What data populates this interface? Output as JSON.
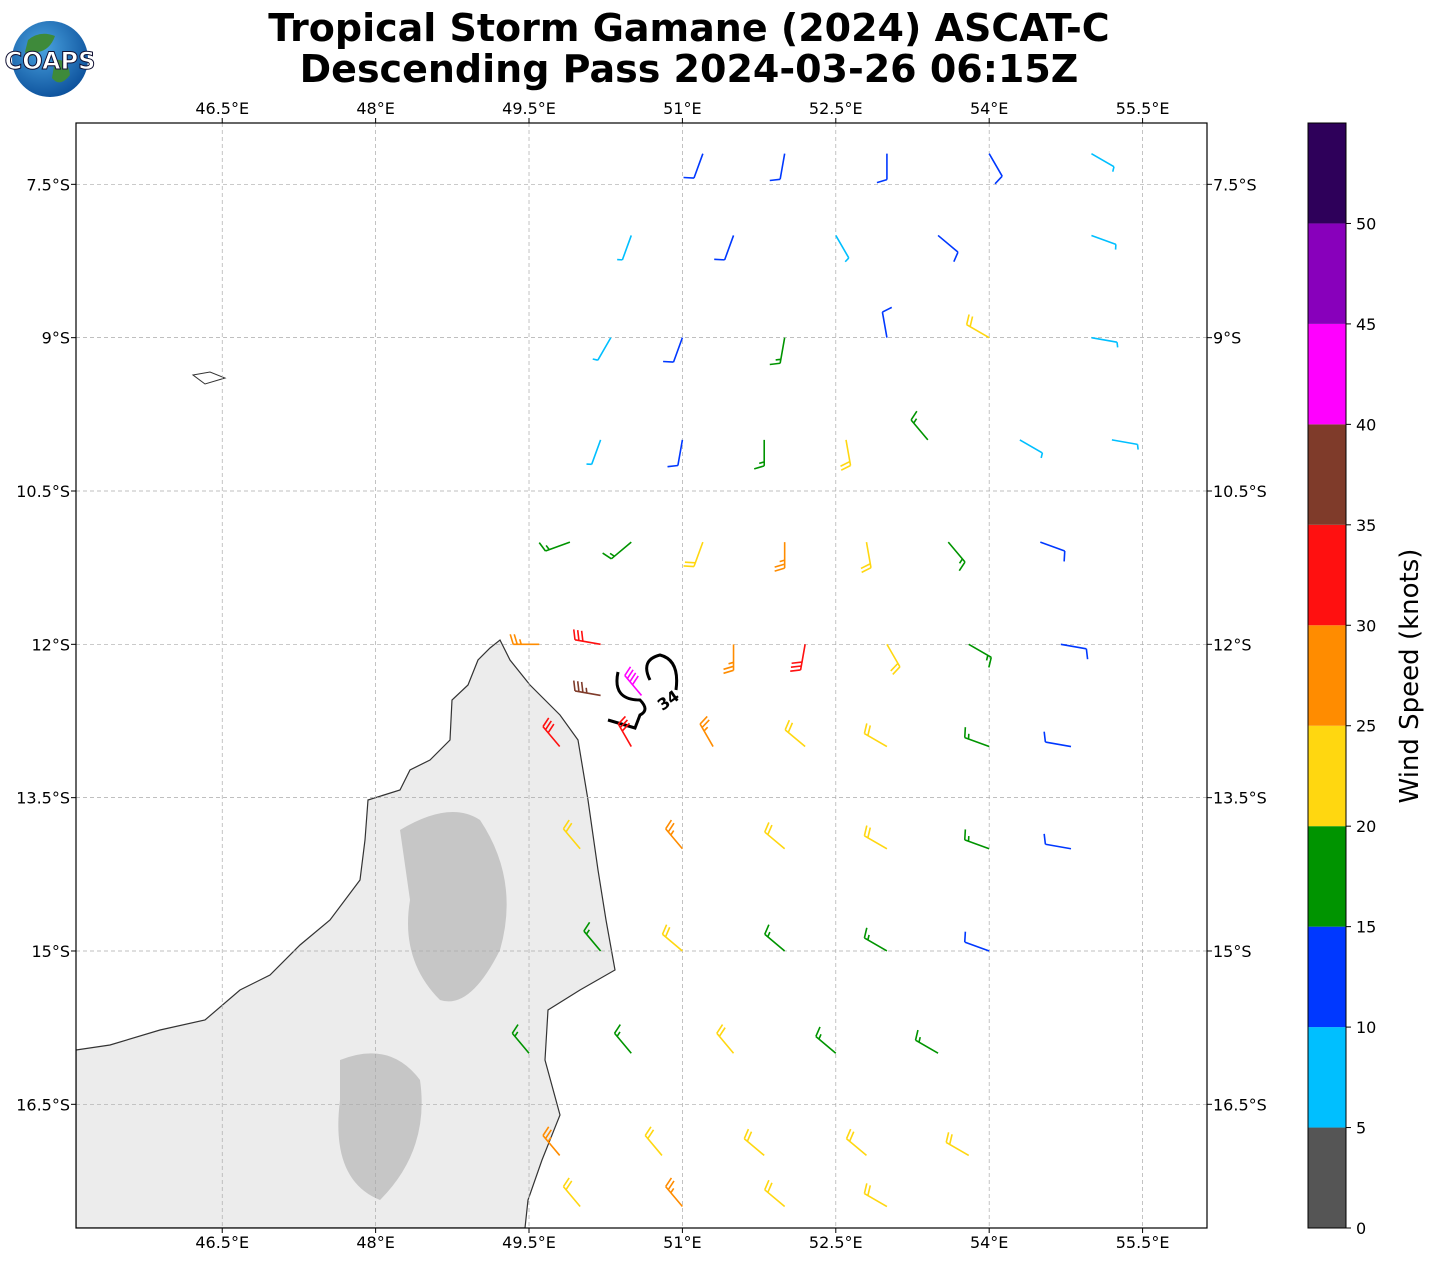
{
  "chart_data": {
    "type": "barbs",
    "title": "Tropical Storm Gamane (2024) ASCAT-C",
    "subtitle": "Descending Pass 2024-03-26 06:15Z",
    "logo": "COAPS",
    "xlim": [
      45.07,
      56.13
    ],
    "ylim": [
      -17.71,
      -6.9
    ],
    "xticks": [
      {
        "value": 46.5,
        "label": "46.5°E"
      },
      {
        "value": 48,
        "label": "48°E"
      },
      {
        "value": 49.5,
        "label": "49.5°E"
      },
      {
        "value": 51,
        "label": "51°E"
      },
      {
        "value": 52.5,
        "label": "52.5°E"
      },
      {
        "value": 54,
        "label": "54°E"
      },
      {
        "value": 55.5,
        "label": "55.5°E"
      }
    ],
    "yticks": [
      {
        "value": -7.5,
        "label": "7.5°S"
      },
      {
        "value": -9,
        "label": "9°S"
      },
      {
        "value": -10.5,
        "label": "10.5°S"
      },
      {
        "value": -12,
        "label": "12°S"
      },
      {
        "value": -13.5,
        "label": "13.5°S"
      },
      {
        "value": -15,
        "label": "15°S"
      },
      {
        "value": -16.5,
        "label": "16.5°S"
      }
    ],
    "grid": true,
    "contour": {
      "level": 34,
      "color": "#000000"
    },
    "colorbar": {
      "label": "Wind Speed (knots)",
      "levels": [
        0,
        5,
        10,
        15,
        20,
        25,
        30,
        35,
        40,
        45,
        50,
        55
      ],
      "colors": [
        "#555555",
        "#00bfff",
        "#0038ff",
        "#009400",
        "#ffd710",
        "#ff8c00",
        "#ff1010",
        "#7f3b2a",
        "#ff00ff",
        "#8800bb",
        "#2e005a"
      ],
      "ticks": [
        0,
        5,
        10,
        15,
        20,
        25,
        30,
        35,
        40,
        45,
        50
      ]
    },
    "barbs": [
      [
        51.2,
        -7.2,
        12,
        200
      ],
      [
        52,
        -7.2,
        12,
        190
      ],
      [
        53,
        -7.2,
        13,
        180
      ],
      [
        54,
        -7.2,
        10,
        150
      ],
      [
        55,
        -7.2,
        8,
        120
      ],
      [
        50.5,
        -8,
        8,
        200
      ],
      [
        51.5,
        -8,
        13,
        200
      ],
      [
        52.5,
        -8,
        9,
        150
      ],
      [
        53.5,
        -8,
        12,
        130
      ],
      [
        55,
        -8,
        8,
        110
      ],
      [
        50.3,
        -9,
        8,
        210
      ],
      [
        51,
        -9,
        13,
        200
      ],
      [
        52,
        -9,
        15,
        190
      ],
      [
        53,
        -9,
        14,
        350
      ],
      [
        54,
        -9,
        22,
        300
      ],
      [
        55,
        -9,
        9,
        100
      ],
      [
        50.2,
        -10,
        9,
        200
      ],
      [
        51,
        -10,
        14,
        190
      ],
      [
        51.8,
        -10,
        16,
        180
      ],
      [
        52.6,
        -10,
        22,
        170
      ],
      [
        53.4,
        -10,
        17,
        320
      ],
      [
        54.3,
        -10,
        9,
        120
      ],
      [
        55.2,
        -10,
        8,
        100
      ],
      [
        49.9,
        -11,
        17,
        250
      ],
      [
        50.5,
        -11,
        16,
        230
      ],
      [
        51.2,
        -11,
        22,
        200
      ],
      [
        52,
        -11,
        26,
        180
      ],
      [
        52.8,
        -11,
        23,
        170
      ],
      [
        53.6,
        -11,
        19,
        140
      ],
      [
        54.5,
        -11,
        13,
        110
      ],
      [
        49.6,
        -12,
        26,
        270
      ],
      [
        50.2,
        -12,
        33,
        280
      ],
      [
        51.5,
        -12,
        27,
        180
      ],
      [
        52.2,
        -12,
        32,
        190
      ],
      [
        53,
        -12,
        24,
        150
      ],
      [
        53.8,
        -12,
        17,
        120
      ],
      [
        54.7,
        -12,
        13,
        100
      ],
      [
        50.6,
        -12.5,
        42,
        320
      ],
      [
        50.2,
        -12.5,
        37,
        280
      ],
      [
        49.8,
        -13,
        30,
        320
      ],
      [
        50.5,
        -13,
        33,
        330
      ],
      [
        51.3,
        -13,
        27,
        330
      ],
      [
        52.2,
        -13,
        24,
        310
      ],
      [
        53,
        -13,
        21,
        300
      ],
      [
        54,
        -13,
        17,
        290
      ],
      [
        54.8,
        -13,
        12,
        280
      ],
      [
        50,
        -14,
        22,
        320
      ],
      [
        51,
        -14,
        26,
        320
      ],
      [
        52,
        -14,
        23,
        310
      ],
      [
        53,
        -14,
        20,
        300
      ],
      [
        54,
        -14,
        15,
        290
      ],
      [
        54.8,
        -14,
        13,
        280
      ],
      [
        50.2,
        -15,
        16,
        320
      ],
      [
        51,
        -15,
        23,
        310
      ],
      [
        52,
        -15,
        19,
        310
      ],
      [
        53,
        -15,
        17,
        300
      ],
      [
        54,
        -15,
        14,
        290
      ],
      [
        49.5,
        -16,
        16,
        320
      ],
      [
        50.5,
        -16,
        19,
        320
      ],
      [
        51.5,
        -16,
        22,
        320
      ],
      [
        52.5,
        -16,
        19,
        310
      ],
      [
        53.5,
        -16,
        17,
        300
      ],
      [
        49.8,
        -17,
        26,
        320
      ],
      [
        50.8,
        -17,
        23,
        320
      ],
      [
        51.8,
        -17,
        22,
        310
      ],
      [
        52.8,
        -17,
        21,
        310
      ],
      [
        53.8,
        -17,
        22,
        300
      ],
      [
        50,
        -17.5,
        22,
        320
      ],
      [
        51,
        -17.5,
        27,
        320
      ],
      [
        52,
        -17.5,
        23,
        310
      ],
      [
        53,
        -17.5,
        22,
        300
      ]
    ]
  }
}
